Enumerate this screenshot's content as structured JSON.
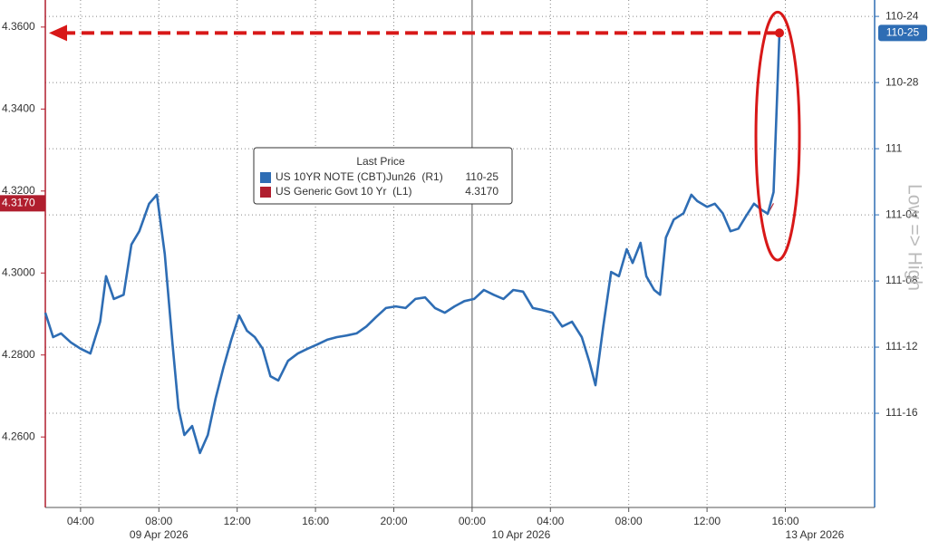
{
  "chart_data": {
    "type": "line",
    "x_date_labels": [
      {
        "value": 8,
        "label": "09 Apr 2026"
      },
      {
        "value": 26.5,
        "label": "10 Apr 2026"
      },
      {
        "value": 41.5,
        "label": "13 Apr 2026"
      }
    ],
    "x": [
      2.2,
      2.6,
      3.0,
      3.5,
      4.0,
      4.5,
      5.0,
      5.3,
      5.7,
      6.2,
      6.6,
      7.0,
      7.5,
      7.9,
      8.3,
      8.7,
      9.0,
      9.3,
      9.7,
      10.1,
      10.5,
      10.9,
      11.3,
      11.7,
      12.1,
      12.5,
      12.9,
      13.3,
      13.7,
      14.1,
      14.6,
      15.1,
      15.6,
      16.1,
      16.6,
      17.1,
      17.6,
      18.1,
      18.6,
      19.1,
      19.6,
      20.1,
      20.6,
      21.1,
      21.6,
      22.1,
      22.6,
      23.1,
      23.6,
      24.1,
      24.6,
      25.1,
      25.6,
      26.1,
      26.6,
      27.1,
      27.6,
      28.1,
      28.6,
      29.1,
      29.6,
      30.0,
      30.3,
      30.7,
      31.1,
      31.5,
      31.9,
      32.2,
      32.6,
      32.9,
      33.3,
      33.6,
      33.9,
      34.3,
      34.8,
      35.2,
      35.5,
      36.0,
      36.4,
      36.8,
      37.2,
      37.6,
      38.0,
      38.4,
      38.8,
      39.1,
      39.4,
      39.7
    ],
    "series": [
      {
        "name": "US 10YR NOTE (CBT)Jun26  (R1)",
        "last_label": "110-25",
        "color": "#2e6db4",
        "axis": "y2",
        "values": [
          111.31,
          111.356,
          111.349,
          111.366,
          111.378,
          111.387,
          111.327,
          111.241,
          111.284,
          111.276,
          111.181,
          111.156,
          111.104,
          111.087,
          111.199,
          111.37,
          111.49,
          111.541,
          111.524,
          111.575,
          111.541,
          111.472,
          111.413,
          111.361,
          111.315,
          111.344,
          111.356,
          111.378,
          111.43,
          111.438,
          111.401,
          111.387,
          111.378,
          111.37,
          111.361,
          111.356,
          111.353,
          111.349,
          111.336,
          111.318,
          111.301,
          111.298,
          111.301,
          111.284,
          111.281,
          111.301,
          111.31,
          111.298,
          111.288,
          111.284,
          111.267,
          111.276,
          111.284,
          111.267,
          111.27,
          111.301,
          111.305,
          111.31,
          111.336,
          111.327,
          111.356,
          111.404,
          111.447,
          111.336,
          111.233,
          111.241,
          111.19,
          111.216,
          111.178,
          111.241,
          111.267,
          111.276,
          111.168,
          111.134,
          111.122,
          111.087,
          111.099,
          111.11,
          111.104,
          111.122,
          111.156,
          111.151,
          111.127,
          111.104,
          111.116,
          111.123,
          111.082,
          110.78125
        ]
      },
      {
        "name": "US Generic Govt 10 Yr  (L1)",
        "last_label": "4.3170",
        "color": "#b01e2e",
        "values": [
          4.2903,
          4.2844,
          4.2852,
          4.283,
          4.2815,
          4.2804,
          4.2881,
          4.2992,
          4.2936,
          4.2947,
          4.3069,
          4.3102,
          4.3169,
          4.3191,
          4.3047,
          4.2826,
          4.2671,
          4.2605,
          4.2627,
          4.256,
          4.2605,
          4.2693,
          4.2771,
          4.2837,
          4.2897,
          4.2859,
          4.2844,
          4.2815,
          4.2748,
          4.2737,
          4.2786,
          4.2804,
          4.2815,
          4.2826,
          4.2837,
          4.2844,
          4.2848,
          4.2852,
          4.287,
          4.2892,
          4.2914,
          4.2919,
          4.2914,
          4.2936,
          4.2941,
          4.2914,
          4.2903,
          4.2919,
          4.2932,
          4.2936,
          4.2959,
          4.2947,
          4.2936,
          4.2959,
          4.2954,
          4.2914,
          4.291,
          4.2903,
          4.287,
          4.2881,
          4.2844,
          4.2782,
          4.2726,
          4.287,
          4.3003,
          4.2992,
          4.3058,
          4.3025,
          4.3074,
          4.2992,
          4.2959,
          4.2947,
          4.3087,
          4.3131,
          4.3147,
          4.3191,
          4.3175,
          4.3162,
          4.3169,
          4.3147,
          4.3102,
          4.3109,
          4.314,
          4.3169,
          4.3153,
          4.3144,
          4.317,
          null
        ]
      }
    ],
    "legend_title": "Last Price",
    "y2_title": "Low => High",
    "xlim": [
      2.2,
      44.56
    ],
    "xticks": [
      {
        "value": 4,
        "label": "04:00"
      },
      {
        "value": 8,
        "label": "08:00"
      },
      {
        "value": 12,
        "label": "12:00"
      },
      {
        "value": 16,
        "label": "16:00"
      },
      {
        "value": 20,
        "label": "20:00"
      },
      {
        "value": 24,
        "label": "00:00"
      },
      {
        "value": 28,
        "label": "04:00"
      },
      {
        "value": 32,
        "label": "08:00"
      },
      {
        "value": 36,
        "label": "12:00"
      },
      {
        "value": 40,
        "label": "16:00"
      }
    ],
    "ylim": [
      4.2428,
      4.3666
    ],
    "yticks": [
      {
        "value": 4.26,
        "label": "4.2600"
      },
      {
        "value": 4.28,
        "label": "4.2800"
      },
      {
        "value": 4.3,
        "label": "4.3000"
      },
      {
        "value": 4.32,
        "label": "4.3200"
      },
      {
        "value": 4.34,
        "label": "4.3400"
      },
      {
        "value": 4.36,
        "label": "4.3600"
      }
    ],
    "y2lim": [
      111.678,
      110.719
    ],
    "y2ticks": [
      {
        "value": 110.75,
        "label": "110-24"
      },
      {
        "value": 110.875,
        "label": "110-28"
      },
      111,
      {
        "value": 111.125,
        "label": "111-04"
      },
      {
        "value": 111.25,
        "label": "111-08"
      },
      {
        "value": 111.375,
        "label": "111-12"
      },
      {
        "value": 111.5,
        "label": "111-16"
      }
    ],
    "grid": true
  }
}
